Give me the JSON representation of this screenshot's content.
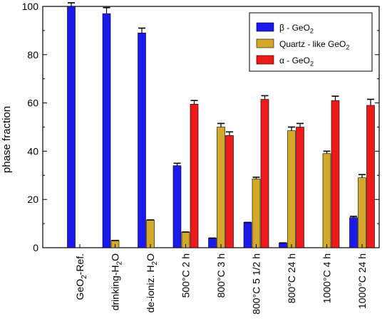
{
  "chart_data": {
    "type": "bar",
    "ylabel": "phase fraction",
    "xlabel": "",
    "title": "",
    "ylim": [
      0,
      100
    ],
    "yticks": [
      0,
      20,
      40,
      60,
      80,
      100
    ],
    "legend_position": "top-right",
    "categories": [
      [
        "GeO",
        "2",
        "-Ref."
      ],
      [
        "drinking-H",
        "2",
        "O"
      ],
      [
        "de-ioniz. H",
        "2",
        "O"
      ],
      [
        "500°C 2 h",
        "",
        ""
      ],
      [
        "800°C 3 h",
        "",
        ""
      ],
      [
        "800°C 5 1/2 h",
        "",
        ""
      ],
      [
        "800°C 24 h",
        "",
        ""
      ],
      [
        "1000°C 4 h",
        "",
        ""
      ],
      [
        "1000°C 24 h",
        "",
        ""
      ]
    ],
    "series": [
      {
        "name_parts": [
          "β - GeO",
          "2",
          ""
        ],
        "color": "#1a1aee",
        "values": [
          100,
          97,
          89,
          34,
          4,
          10.5,
          2,
          null,
          12.5
        ],
        "errors": [
          1.5,
          2.5,
          2,
          1,
          0,
          0,
          0,
          null,
          0.5
        ]
      },
      {
        "name_parts": [
          "Quartz - like GeO",
          "2",
          ""
        ],
        "color": "#d4a82a",
        "values": [
          null,
          3,
          11.5,
          6.5,
          50,
          28.5,
          48.5,
          39,
          29
        ],
        "errors": [
          null,
          0,
          0,
          0,
          1.5,
          0.7,
          1.5,
          1,
          1.3
        ]
      },
      {
        "name_parts": [
          "α - GeO",
          "2",
          ""
        ],
        "color": "#ee1a1a",
        "values": [
          null,
          null,
          null,
          59.5,
          46.5,
          61.5,
          50,
          61,
          59
        ],
        "errors": [
          null,
          null,
          null,
          1.5,
          1.5,
          1.5,
          1.5,
          1.8,
          2.5
        ]
      }
    ]
  }
}
